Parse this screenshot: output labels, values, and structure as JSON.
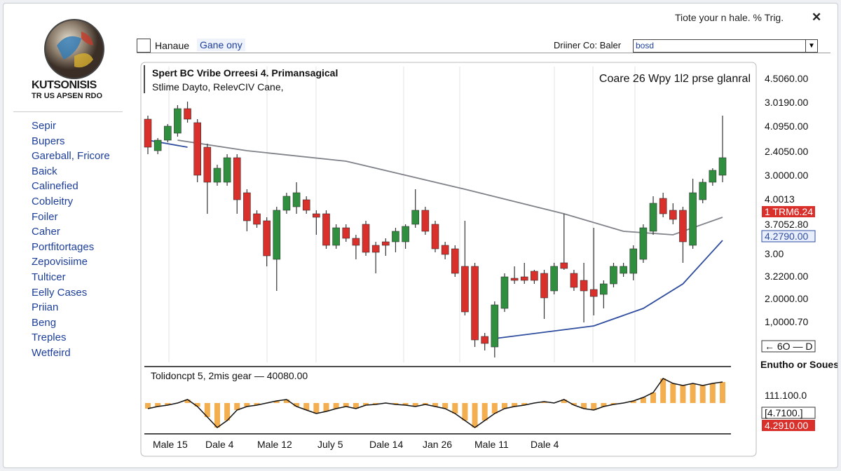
{
  "header": {
    "notice": "Tiote your n hale. % Trig.",
    "close": "✕"
  },
  "logo": {
    "name": "KUTSONISIS",
    "tagline": "TR US APSEN RDO"
  },
  "sidebar": [
    "Sepir",
    "Bupers",
    "Gareball, Fricore",
    "Baick",
    "Calinefied",
    "Cobleitry",
    "Foiler",
    "Caher",
    "Portfitortages",
    "Zepovisiime",
    "Tulticer",
    "Eelly Cases",
    "Priian",
    "Beng",
    "Treples",
    "Wetfeird"
  ],
  "toolbar": {
    "tab1": "Hanaue",
    "tab2": "Gane ony",
    "driver_label": "Driiner Co: Baler",
    "driver_value": "bosd"
  },
  "chart": {
    "type": "candlestick",
    "title": "Spert BC Vribe Orreesi 4. Primansagical",
    "subtitle": "Stlime Dayto, RelevCIV Cane,",
    "note": "Coare 26 Wpy  1l2 prse glanral",
    "ylim": [
      0,
      415
    ],
    "open": [
      345,
      300,
      315,
      325,
      360,
      340,
      305,
      255,
      255,
      290,
      240,
      210,
      200,
      145,
      215,
      220,
      230,
      210,
      210,
      165,
      190,
      175,
      195,
      165,
      170,
      170,
      170,
      195,
      215,
      195,
      165,
      160,
      135,
      135,
      35,
      20,
      75,
      118,
      120,
      128,
      125,
      100,
      140,
      125,
      115,
      102,
      95,
      110,
      125,
      125,
      145,
      185,
      232,
      215,
      215,
      165,
      230,
      255,
      265
    ],
    "high": [
      350,
      318,
      338,
      365,
      370,
      345,
      310,
      280,
      295,
      295,
      245,
      215,
      205,
      220,
      240,
      255,
      235,
      215,
      215,
      195,
      195,
      180,
      200,
      170,
      175,
      190,
      195,
      245,
      220,
      200,
      170,
      165,
      200,
      140,
      40,
      85,
      125,
      135,
      140,
      130,
      130,
      140,
      210,
      130,
      140,
      190,
      115,
      140,
      140,
      165,
      195,
      235,
      240,
      225,
      220,
      260,
      260,
      275,
      350
    ],
    "low": [
      295,
      295,
      312,
      320,
      340,
      255,
      210,
      250,
      250,
      210,
      185,
      190,
      135,
      100,
      210,
      210,
      210,
      180,
      160,
      160,
      170,
      145,
      150,
      125,
      150,
      155,
      160,
      190,
      180,
      155,
      145,
      120,
      65,
      20,
      15,
      5,
      70,
      110,
      110,
      110,
      60,
      95,
      130,
      100,
      55,
      65,
      75,
      105,
      120,
      115,
      140,
      180,
      205,
      195,
      140,
      160,
      225,
      250,
      255
    ],
    "close": [
      305,
      315,
      335,
      360,
      345,
      265,
      255,
      275,
      290,
      230,
      200,
      195,
      150,
      215,
      235,
      240,
      215,
      205,
      165,
      190,
      175,
      165,
      155,
      155,
      165,
      185,
      192,
      215,
      185,
      160,
      152,
      125,
      70,
      30,
      25,
      80,
      120,
      115,
      115,
      115,
      90,
      135,
      132,
      105,
      100,
      92,
      110,
      135,
      135,
      160,
      190,
      225,
      210,
      202,
      170,
      240,
      255,
      272,
      290
    ],
    "up_color": "#2f8f3f",
    "down_color": "#d9302c",
    "overlays": [
      {
        "color": "#2f4d9e",
        "x": [
          0,
          4
        ],
        "values": [
          315,
          305
        ]
      },
      {
        "color": "#7f8288",
        "x": [
          3,
          10,
          20,
          32,
          42,
          48,
          53,
          58
        ],
        "values": [
          315,
          300,
          285,
          245,
          210,
          185,
          180,
          205
        ]
      },
      {
        "color": "#2f4d9e",
        "x": [
          35,
          45,
          50,
          54,
          58
        ],
        "values": [
          32,
          50,
          75,
          110,
          172
        ]
      }
    ],
    "price_labels": [
      {
        "text": "4.5060.00"
      },
      {
        "text": "3.0190.00"
      },
      {
        "text": "4.0950.00"
      },
      {
        "text": "2.4050.00"
      },
      {
        "text": "3.0000.00"
      },
      {
        "text": "4.0013"
      },
      {
        "text": "1 TRM6.24",
        "highlight": "red"
      },
      {
        "text": "3.7052.80"
      },
      {
        "text": "4.2790.00",
        "highlight": "blue"
      },
      {
        "text": "3.00"
      },
      {
        "text": "3.2200.00"
      },
      {
        "text": "2.0000.00"
      },
      {
        "text": "1,0000.70"
      },
      {
        "text": "← 6O — D",
        "highlight": "box"
      }
    ],
    "indicator": {
      "label": "Tolidoncpt 5, 2mis gear — 40080.00",
      "ylim": [
        -40,
        40
      ],
      "values": [
        -8,
        -5,
        -3,
        0,
        5,
        -5,
        -20,
        -35,
        -25,
        -10,
        -5,
        -3,
        0,
        3,
        5,
        -5,
        -10,
        -15,
        -12,
        -8,
        -5,
        -8,
        -3,
        -2,
        0,
        -2,
        -3,
        -5,
        -2,
        -5,
        -8,
        -15,
        -25,
        -35,
        -25,
        -15,
        -8,
        -5,
        -3,
        0,
        2,
        0,
        5,
        -3,
        -8,
        -10,
        -5,
        -2,
        0,
        3,
        8,
        15,
        35,
        28,
        25,
        28,
        25,
        28,
        30
      ],
      "bar_color": "#f0a030",
      "line_color": "#111111",
      "side_title": "Enutho or Soues",
      "side_labels": [
        {
          "text": "111.100.0"
        },
        {
          "text": "[4.7100.]",
          "highlight": "box"
        },
        {
          "text": "4.2910.00",
          "highlight": "red"
        }
      ]
    },
    "x_labels": [
      "Male 15",
      "Dale 4",
      "Male 12",
      "July 5",
      "Dale 14",
      "Jan 26",
      "Male 11",
      "Dale 4"
    ]
  }
}
